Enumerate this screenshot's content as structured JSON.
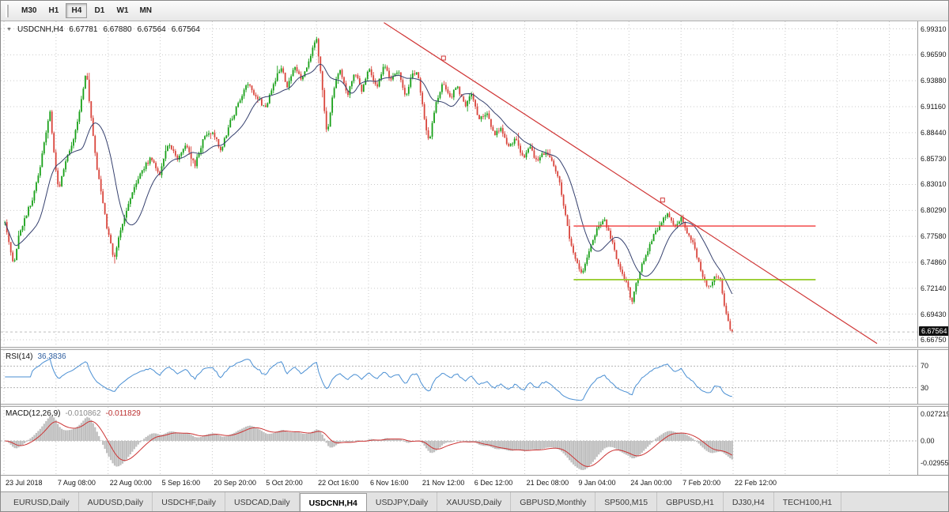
{
  "toolbar": {
    "timeframes": [
      {
        "label": "M30",
        "active": false
      },
      {
        "label": "H1",
        "active": false
      },
      {
        "label": "H4",
        "active": true
      },
      {
        "label": "D1",
        "active": false
      },
      {
        "label": "W1",
        "active": false
      },
      {
        "label": "MN",
        "active": false
      }
    ]
  },
  "chart": {
    "title": {
      "symbol": "USDCNH,H4",
      "open": "6.67781",
      "high": "6.67880",
      "low": "6.67564",
      "close": "6.67564"
    },
    "price_axis": {
      "labels": [
        "6.99310",
        "6.96590",
        "6.93880",
        "6.91160",
        "6.88440",
        "6.85730",
        "6.83010",
        "6.80290",
        "6.77580",
        "6.74860",
        "6.72140",
        "6.69430",
        "6.66750"
      ],
      "current_price": "6.67564"
    },
    "time_axis": {
      "labels": [
        "23 Jul 2018",
        "7 Aug 08:00",
        "22 Aug 00:00",
        "5 Sep 16:00",
        "20 Sep 20:00",
        "5 Oct 20:00",
        "22 Oct 16:00",
        "6 Nov 16:00",
        "21 Nov 12:00",
        "6 Dec 12:00",
        "21 Dec 08:00",
        "9 Jan 04:00",
        "24 Jan 00:00",
        "7 Feb 20:00",
        "22 Feb 12:00"
      ]
    }
  },
  "indicators": {
    "rsi": {
      "name": "RSI(14)",
      "value": "36.3836",
      "period": 14,
      "levels": [
        70,
        30
      ]
    },
    "macd": {
      "name": "MACD(12,26,9)",
      "value_main": "-0.010862",
      "value_signal": "-0.011829",
      "axis": [
        "0.0272190",
        "0.00",
        "-0.0295580"
      ]
    }
  },
  "tabs": [
    {
      "label": "EURUSD,Daily",
      "active": false
    },
    {
      "label": "AUDUSD,Daily",
      "active": false
    },
    {
      "label": "USDCHF,Daily",
      "active": false
    },
    {
      "label": "USDCAD,Daily",
      "active": false
    },
    {
      "label": "USDCNH,H4",
      "active": true
    },
    {
      "label": "USDJPY,Daily",
      "active": false
    },
    {
      "label": "XAUUSD,Daily",
      "active": false
    },
    {
      "label": "GBPUSD,Monthly",
      "active": false
    },
    {
      "label": "SP500,M15",
      "active": false
    },
    {
      "label": "GBPUSD,H1",
      "active": false
    },
    {
      "label": "DJ30,H4",
      "active": false
    },
    {
      "label": "TECH100,H1",
      "active": false
    }
  ],
  "colors": {
    "bull": "#18a018",
    "bear": "#d9453c",
    "ma": "#35406e",
    "grid": "#c9c9c9",
    "rsi": "#4a8fd3",
    "rsi_level": "#b4b4b4",
    "trendline": "#d03636",
    "hline_red": "#f23b3b",
    "hline_yellow": "#9acd32",
    "macd_hist": "#bfbfbf",
    "macd_signal": "#cc3333",
    "badge_bg": "#101010",
    "badge_text": "#ffffff"
  },
  "chart_data": {
    "type": "candlestick",
    "symbol": "USDCNH",
    "timeframe": "H4",
    "x_axis": [
      "23 Jul 2018",
      "7 Aug 08:00",
      "22 Aug 00:00",
      "5 Sep 16:00",
      "20 Sep 20:00",
      "5 Oct 20:00",
      "22 Oct 16:00",
      "6 Nov 16:00",
      "21 Nov 12:00",
      "6 Dec 12:00",
      "21 Dec 08:00",
      "9 Jan 04:00",
      "24 Jan 00:00",
      "7 Feb 20:00",
      "22 Feb 12:00"
    ],
    "price_range": {
      "min": 6.66,
      "max": 7.001
    },
    "num_candles": 372,
    "seed": 11,
    "noise": 0.0045,
    "last_close": 6.67564,
    "close_path_anchors": [
      [
        0.0,
        6.79
      ],
      [
        0.006,
        6.766
      ],
      [
        0.012,
        6.744
      ],
      [
        0.02,
        6.78
      ],
      [
        0.03,
        6.8
      ],
      [
        0.04,
        6.82
      ],
      [
        0.048,
        6.846
      ],
      [
        0.056,
        6.882
      ],
      [
        0.062,
        6.908
      ],
      [
        0.068,
        6.858
      ],
      [
        0.074,
        6.824
      ],
      [
        0.082,
        6.85
      ],
      [
        0.09,
        6.868
      ],
      [
        0.098,
        6.888
      ],
      [
        0.106,
        6.924
      ],
      [
        0.112,
        6.95
      ],
      [
        0.118,
        6.902
      ],
      [
        0.126,
        6.85
      ],
      [
        0.134,
        6.812
      ],
      [
        0.142,
        6.778
      ],
      [
        0.15,
        6.753
      ],
      [
        0.158,
        6.778
      ],
      [
        0.166,
        6.8
      ],
      [
        0.177,
        6.824
      ],
      [
        0.189,
        6.846
      ],
      [
        0.201,
        6.858
      ],
      [
        0.213,
        6.842
      ],
      [
        0.225,
        6.876
      ],
      [
        0.237,
        6.854
      ],
      [
        0.249,
        6.872
      ],
      [
        0.261,
        6.85
      ],
      [
        0.273,
        6.878
      ],
      [
        0.285,
        6.886
      ],
      [
        0.297,
        6.866
      ],
      [
        0.31,
        6.896
      ],
      [
        0.322,
        6.916
      ],
      [
        0.334,
        6.936
      ],
      [
        0.346,
        6.922
      ],
      [
        0.358,
        6.91
      ],
      [
        0.37,
        6.936
      ],
      [
        0.38,
        6.954
      ],
      [
        0.388,
        6.93
      ],
      [
        0.398,
        6.956
      ],
      [
        0.408,
        6.94
      ],
      [
        0.418,
        6.96
      ],
      [
        0.428,
        6.984
      ],
      [
        0.436,
        6.934
      ],
      [
        0.443,
        6.88
      ],
      [
        0.451,
        6.928
      ],
      [
        0.461,
        6.952
      ],
      [
        0.471,
        6.922
      ],
      [
        0.481,
        6.948
      ],
      [
        0.491,
        6.928
      ],
      [
        0.501,
        6.952
      ],
      [
        0.511,
        6.93
      ],
      [
        0.521,
        6.956
      ],
      [
        0.531,
        6.94
      ],
      [
        0.541,
        6.95
      ],
      [
        0.551,
        6.922
      ],
      [
        0.559,
        6.944
      ],
      [
        0.567,
        6.948
      ],
      [
        0.575,
        6.908
      ],
      [
        0.583,
        6.874
      ],
      [
        0.592,
        6.912
      ],
      [
        0.602,
        6.938
      ],
      [
        0.612,
        6.92
      ],
      [
        0.622,
        6.934
      ],
      [
        0.632,
        6.912
      ],
      [
        0.642,
        6.924
      ],
      [
        0.652,
        6.898
      ],
      [
        0.662,
        6.906
      ],
      [
        0.672,
        6.882
      ],
      [
        0.682,
        6.89
      ],
      [
        0.692,
        6.868
      ],
      [
        0.702,
        6.878
      ],
      [
        0.712,
        6.858
      ],
      [
        0.722,
        6.868
      ],
      [
        0.732,
        6.854
      ],
      [
        0.742,
        6.864
      ],
      [
        0.752,
        6.856
      ],
      [
        0.762,
        6.836
      ],
      [
        0.77,
        6.802
      ],
      [
        0.778,
        6.768
      ],
      [
        0.786,
        6.748
      ],
      [
        0.794,
        6.736
      ],
      [
        0.804,
        6.764
      ],
      [
        0.814,
        6.784
      ],
      [
        0.824,
        6.795
      ],
      [
        0.834,
        6.772
      ],
      [
        0.844,
        6.746
      ],
      [
        0.854,
        6.728
      ],
      [
        0.862,
        6.708
      ],
      [
        0.872,
        6.736
      ],
      [
        0.882,
        6.758
      ],
      [
        0.892,
        6.776
      ],
      [
        0.902,
        6.79
      ],
      [
        0.912,
        6.8
      ],
      [
        0.922,
        6.786
      ],
      [
        0.93,
        6.795
      ],
      [
        0.938,
        6.78
      ],
      [
        0.946,
        6.768
      ],
      [
        0.954,
        6.748
      ],
      [
        0.962,
        6.728
      ],
      [
        0.97,
        6.722
      ],
      [
        0.977,
        6.737
      ],
      [
        0.984,
        6.729
      ],
      [
        0.99,
        6.7
      ],
      [
        0.995,
        6.684
      ],
      [
        1.0,
        6.67564
      ]
    ],
    "overlays": {
      "ma": {
        "period": 16
      },
      "trendline": {
        "from": [
          0.418,
          6.9997
        ],
        "to": [
          0.956,
          6.6635
        ],
        "markers": [
          [
            0.483,
            6.9625
          ],
          [
            0.722,
            6.8138
          ]
        ]
      },
      "resistance": {
        "price": 6.7866,
        "from_frac": 0.625,
        "to_frac": 0.889
      },
      "support": {
        "price": 6.7304,
        "from_frac": 0.625,
        "to_frac": 0.889
      }
    },
    "indicator_params": {
      "rsi_period": 14,
      "macd": [
        12,
        26,
        9
      ]
    }
  }
}
